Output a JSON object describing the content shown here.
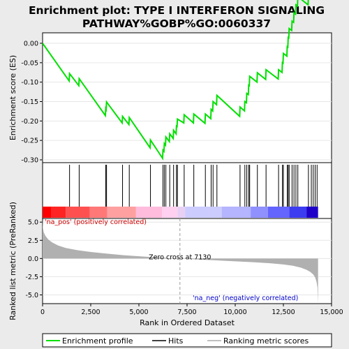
{
  "chart_data": {
    "type": "line",
    "title_line1": "Enrichment plot: TYPE I INTERFERON SIGNALING",
    "title_line2": "PATHWAY%GOBP%GO:0060337",
    "ylabel_top": "Enrichment score (ES)",
    "ylabel_bottom": "Ranked list metric (PreRanked)",
    "xlabel": "Rank in Ordered Dataset",
    "es_yticks": [
      "0.00",
      "-0.05",
      "-0.10",
      "-0.15",
      "-0.20",
      "-0.25",
      "-0.30"
    ],
    "es_ylim": [
      -0.3,
      0.0
    ],
    "metric_yticks": [
      "5.0",
      "2.5",
      "0.0",
      "-2.5",
      "-5.0"
    ],
    "metric_ylim": [
      -6.2,
      5.5
    ],
    "xticks": [
      "0",
      "2,500",
      "5,000",
      "7,500",
      "10,000",
      "12,500",
      "15,000"
    ],
    "xlim": [
      0,
      15000
    ],
    "n_genes": 14300,
    "zero_cross_rank": 7130,
    "zero_cross_label": "Zero cross at 7130",
    "pos_label": "'na_pos' (positively correlated)",
    "neg_label": "'na_neg' (negatively correlated)",
    "hits": [
      1400,
      1900,
      3280,
      3320,
      4150,
      4500,
      5600,
      6250,
      6320,
      6400,
      6600,
      6800,
      6950,
      7000,
      7350,
      7850,
      8450,
      8750,
      8850,
      9050,
      10250,
      10500,
      10600,
      10700,
      10750,
      11150,
      11600,
      12250,
      12450,
      12500,
      12700,
      12750,
      12800,
      12950,
      13050,
      13150,
      13250,
      13800,
      13950,
      14050,
      14150,
      14250
    ],
    "es_curve": [
      [
        0,
        0.0
      ],
      [
        1380,
        -0.097
      ],
      [
        1400,
        -0.078
      ],
      [
        1880,
        -0.109
      ],
      [
        1900,
        -0.091
      ],
      [
        3260,
        -0.186
      ],
      [
        3280,
        -0.168
      ],
      [
        3300,
        -0.17
      ],
      [
        3320,
        -0.151
      ],
      [
        4130,
        -0.205
      ],
      [
        4150,
        -0.188
      ],
      [
        4480,
        -0.209
      ],
      [
        4500,
        -0.191
      ],
      [
        5580,
        -0.269
      ],
      [
        5600,
        -0.249
      ],
      [
        6230,
        -0.296
      ],
      [
        6250,
        -0.275
      ],
      [
        6300,
        -0.278
      ],
      [
        6320,
        -0.258
      ],
      [
        6380,
        -0.262
      ],
      [
        6400,
        -0.241
      ],
      [
        6580,
        -0.253
      ],
      [
        6600,
        -0.233
      ],
      [
        6780,
        -0.245
      ],
      [
        6800,
        -0.224
      ],
      [
        6930,
        -0.233
      ],
      [
        6950,
        -0.213
      ],
      [
        6980,
        -0.214
      ],
      [
        7000,
        -0.195
      ],
      [
        7330,
        -0.205
      ],
      [
        7350,
        -0.184
      ],
      [
        7830,
        -0.205
      ],
      [
        7850,
        -0.182
      ],
      [
        8430,
        -0.206
      ],
      [
        8450,
        -0.182
      ],
      [
        8730,
        -0.194
      ],
      [
        8750,
        -0.17
      ],
      [
        8830,
        -0.174
      ],
      [
        8850,
        -0.15
      ],
      [
        9030,
        -0.158
      ],
      [
        9050,
        -0.134
      ],
      [
        10230,
        -0.188
      ],
      [
        10250,
        -0.164
      ],
      [
        10480,
        -0.174
      ],
      [
        10500,
        -0.15
      ],
      [
        10580,
        -0.153
      ],
      [
        10600,
        -0.129
      ],
      [
        10680,
        -0.132
      ],
      [
        10700,
        -0.108
      ],
      [
        10730,
        -0.109
      ],
      [
        10750,
        -0.085
      ],
      [
        11130,
        -0.1
      ],
      [
        11150,
        -0.076
      ],
      [
        11580,
        -0.093
      ],
      [
        11600,
        -0.068
      ],
      [
        12230,
        -0.092
      ],
      [
        12250,
        -0.068
      ],
      [
        12430,
        -0.075
      ],
      [
        12450,
        -0.05
      ],
      [
        12480,
        -0.051
      ],
      [
        12500,
        -0.026
      ],
      [
        12680,
        -0.033
      ],
      [
        12700,
        -0.009
      ],
      [
        12730,
        -0.01
      ],
      [
        12750,
        0.015
      ],
      [
        12780,
        0.014
      ],
      [
        12800,
        0.038
      ],
      [
        12930,
        0.033
      ],
      [
        12950,
        0.057
      ],
      [
        13030,
        0.054
      ],
      [
        13050,
        0.078
      ],
      [
        13130,
        0.075
      ],
      [
        13150,
        0.099
      ],
      [
        13230,
        0.096
      ],
      [
        13250,
        0.12
      ],
      [
        13780,
        0.099
      ],
      [
        13800,
        0.122
      ],
      [
        13930,
        0.117
      ],
      [
        13950,
        0.141
      ],
      [
        14030,
        0.138
      ],
      [
        14050,
        0.162
      ],
      [
        14130,
        0.159
      ],
      [
        14150,
        0.183
      ],
      [
        14230,
        0.18
      ],
      [
        14250,
        0.204
      ],
      [
        14300,
        0.2
      ]
    ],
    "metric_curve": [
      [
        0,
        5.4
      ],
      [
        20,
        4.2
      ],
      [
        60,
        3.6
      ],
      [
        150,
        3.1
      ],
      [
        300,
        2.6
      ],
      [
        500,
        2.2
      ],
      [
        800,
        1.8
      ],
      [
        1200,
        1.45
      ],
      [
        1800,
        1.15
      ],
      [
        2500,
        0.9
      ],
      [
        3300,
        0.68
      ],
      [
        4200,
        0.45
      ],
      [
        5200,
        0.27
      ],
      [
        6200,
        0.12
      ],
      [
        7130,
        0.0
      ],
      [
        8000,
        -0.12
      ],
      [
        9000,
        -0.25
      ],
      [
        10000,
        -0.38
      ],
      [
        11000,
        -0.52
      ],
      [
        11800,
        -0.65
      ],
      [
        12500,
        -0.82
      ],
      [
        13000,
        -1.0
      ],
      [
        13400,
        -1.25
      ],
      [
        13700,
        -1.55
      ],
      [
        13900,
        -1.85
      ],
      [
        14050,
        -2.2
      ],
      [
        14150,
        -2.6
      ],
      [
        14220,
        -3.2
      ],
      [
        14270,
        -4.0
      ],
      [
        14300,
        -6.2
      ]
    ],
    "band_colors": [
      "#ff0000",
      "#ff2424",
      "#ff5050",
      "#ff7878",
      "#ffa0a0",
      "#ffbcdc",
      "#ffd0f0",
      "#e8d0f4",
      "#ccccff",
      "#b4b4ff",
      "#9090ff",
      "#6464ff",
      "#3c3cf0",
      "#1e00c8"
    ],
    "band_edges": [
      0,
      450,
      1200,
      2450,
      3350,
      4850,
      6200,
      7000,
      7400,
      9300,
      10800,
      11700,
      12800,
      13700,
      14300
    ],
    "legend": {
      "enrichment_profile": "Enrichment profile",
      "hits": "Hits",
      "ranking_metric": "Ranking metric scores"
    },
    "colors": {
      "es_line": "#00e000",
      "metric_fill": "#b0b0b0",
      "pos_text": "#cc0000",
      "neg_text": "#0000cc"
    }
  }
}
